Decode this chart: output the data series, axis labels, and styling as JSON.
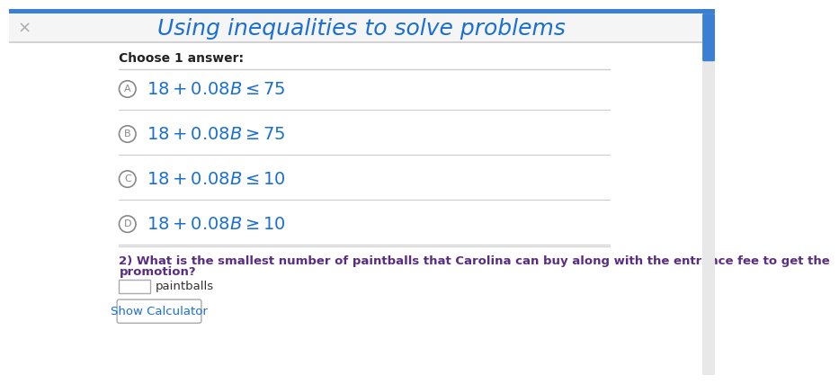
{
  "title": "Using inequalities to solve problems",
  "title_color": "#1a6fd4",
  "title_fontsize": 18,
  "bg_color": "#ffffff",
  "close_symbol": "×",
  "choose_label": "Choose 1 answer:",
  "options": [
    {
      "label": "A",
      "text": "$18 + 0.08B \\leq 75$"
    },
    {
      "label": "B",
      "text": "$18 + 0.08B \\geq 75$"
    },
    {
      "label": "C",
      "text": "$18 + 0.08B \\leq 10$"
    },
    {
      "label": "D",
      "text": "$18 + 0.08B \\geq 10$"
    }
  ],
  "option_text_color": "#1a6fd4",
  "option_circle_color": "#888888",
  "divider_color": "#cccccc",
  "question2_line1": "2) What is the smallest number of paintballs that Carolina can buy along with the entrance fee to get the",
  "question2_line2": "promotion?",
  "question2_color": "#5a2d82",
  "paintballs_label": "paintballs",
  "show_calculator": "Show Calculator",
  "show_calc_color": "#1a6fd4",
  "scrollbar_color": "#3a7fd4",
  "top_bar_color": "#3a7fd4",
  "header_bg": "#f5f5f5",
  "scrollbar_track": "#e8e8e8"
}
